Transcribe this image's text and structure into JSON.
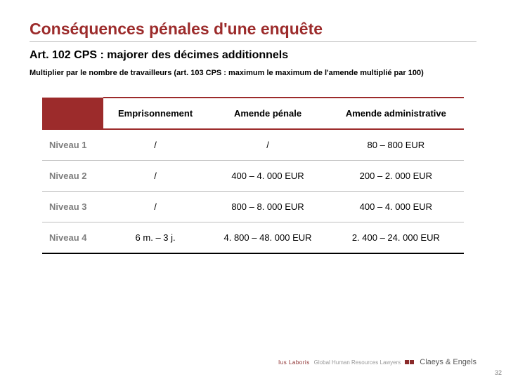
{
  "title": {
    "text": "Conséquences pénales d'une enquête",
    "color": "#9c2b2b"
  },
  "subtitle": "Art. 102 CPS : majorer des décimes additionnels",
  "note": "Multiplier par le nombre de travailleurs (art. 103 CPS : maximum le maximum de l'amende multiplié par 100)",
  "table": {
    "accent_color": "#9c2b2b",
    "header_bg": "#ffffff",
    "corner_bg": "#9c2b2b",
    "columns": [
      "Emprisonnement",
      "Amende pénale",
      "Amende administrative"
    ],
    "rows": [
      {
        "level": "Niveau 1",
        "cells": [
          "/",
          "/",
          "80 – 800 EUR"
        ]
      },
      {
        "level": "Niveau 2",
        "cells": [
          "/",
          "400 – 4. 000 EUR",
          "200 – 2. 000 EUR"
        ]
      },
      {
        "level": "Niveau 3",
        "cells": [
          "/",
          "800 – 8. 000 EUR",
          "400 – 4. 000 EUR"
        ]
      },
      {
        "level": "Niveau 4",
        "cells": [
          "6 m. – 3 j.",
          "4. 800 – 48. 000 EUR",
          "2. 400 – 24. 000 EUR"
        ]
      }
    ]
  },
  "footer": {
    "lius": "Ius Laboris",
    "grey": "Global Human Resources Lawyers",
    "brand": "Claeys & Engels"
  },
  "page_number": "32"
}
